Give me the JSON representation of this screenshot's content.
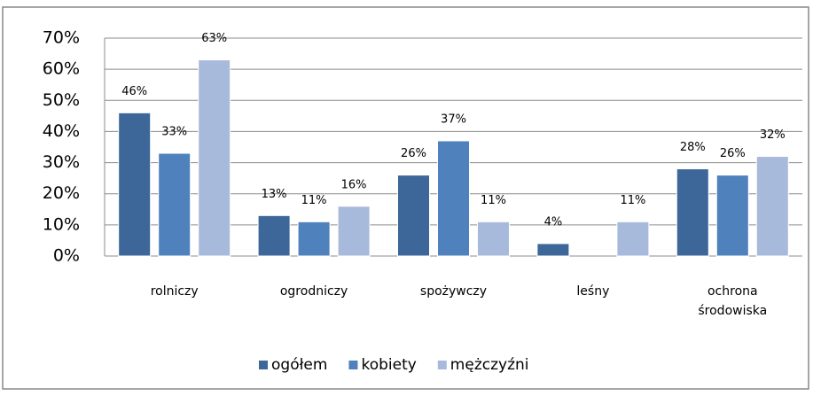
{
  "chart_data": {
    "type": "bar",
    "categories": [
      "rolniczy",
      "ogrodniczy",
      "spożywczy",
      "leśny",
      "ochrona środowiska"
    ],
    "series": [
      {
        "name": "ogółem",
        "color": "#3d6699",
        "values": [
          46,
          13,
          26,
          4,
          28
        ],
        "value_labels": [
          "46%",
          "13%",
          "26%",
          "4%",
          "28%"
        ]
      },
      {
        "name": "kobiety",
        "color": "#4f81bd",
        "values": [
          33,
          11,
          37,
          null,
          26
        ],
        "value_labels": [
          "33%",
          "11%",
          "37%",
          null,
          "26%"
        ]
      },
      {
        "name": "mężczyźni",
        "color": "#a8badb",
        "values": [
          63,
          16,
          11,
          11,
          32
        ],
        "value_labels": [
          "63%",
          "16%",
          "11%",
          "11%",
          "32%"
        ]
      }
    ],
    "ylim": [
      0,
      70
    ],
    "yticks": [
      {
        "value": 0,
        "label": "0%"
      },
      {
        "value": 10,
        "label": "10%"
      },
      {
        "value": 20,
        "label": "20%"
      },
      {
        "value": 30,
        "label": "30%"
      },
      {
        "value": 40,
        "label": "40%"
      },
      {
        "value": 50,
        "label": "50%"
      },
      {
        "value": 60,
        "label": "60%"
      },
      {
        "value": 70,
        "label": "70%"
      }
    ],
    "grid": true,
    "legend": "bottom"
  }
}
